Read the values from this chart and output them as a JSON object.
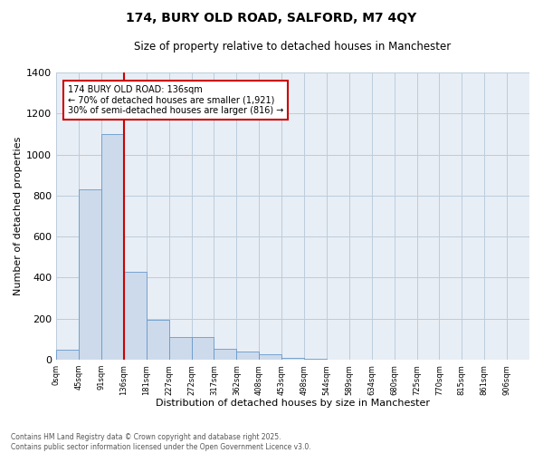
{
  "title1": "174, BURY OLD ROAD, SALFORD, M7 4QY",
  "title2": "Size of property relative to detached houses in Manchester",
  "xlabel": "Distribution of detached houses by size in Manchester",
  "ylabel": "Number of detached properties",
  "annotation_title": "174 BURY OLD ROAD: 136sqm",
  "annotation_line1": "← 70% of detached houses are smaller (1,921)",
  "annotation_line2": "30% of semi-detached houses are larger (816) →",
  "footer1": "Contains HM Land Registry data © Crown copyright and database right 2025.",
  "footer2": "Contains public sector information licensed under the Open Government Licence v3.0.",
  "bar_categories": [
    "0sqm",
    "45sqm",
    "91sqm",
    "136sqm",
    "181sqm",
    "227sqm",
    "272sqm",
    "317sqm",
    "362sqm",
    "408sqm",
    "453sqm",
    "498sqm",
    "544sqm",
    "589sqm",
    "634sqm",
    "680sqm",
    "725sqm",
    "770sqm",
    "815sqm",
    "861sqm",
    "906sqm"
  ],
  "bar_values": [
    50,
    830,
    1100,
    430,
    195,
    110,
    110,
    55,
    40,
    25,
    10,
    5,
    0,
    0,
    0,
    0,
    0,
    0,
    0,
    0,
    0
  ],
  "bar_color": "#cddaeb",
  "bar_edge_color": "#6699cc",
  "vline_color": "#cc0000",
  "vline_x_index": 3,
  "ylim": [
    0,
    1400
  ],
  "yticks": [
    0,
    200,
    400,
    600,
    800,
    1000,
    1200,
    1400
  ],
  "grid_color": "#bbccdd",
  "bg_color": "#e8eef5",
  "annotation_box_color": "#cc0000"
}
